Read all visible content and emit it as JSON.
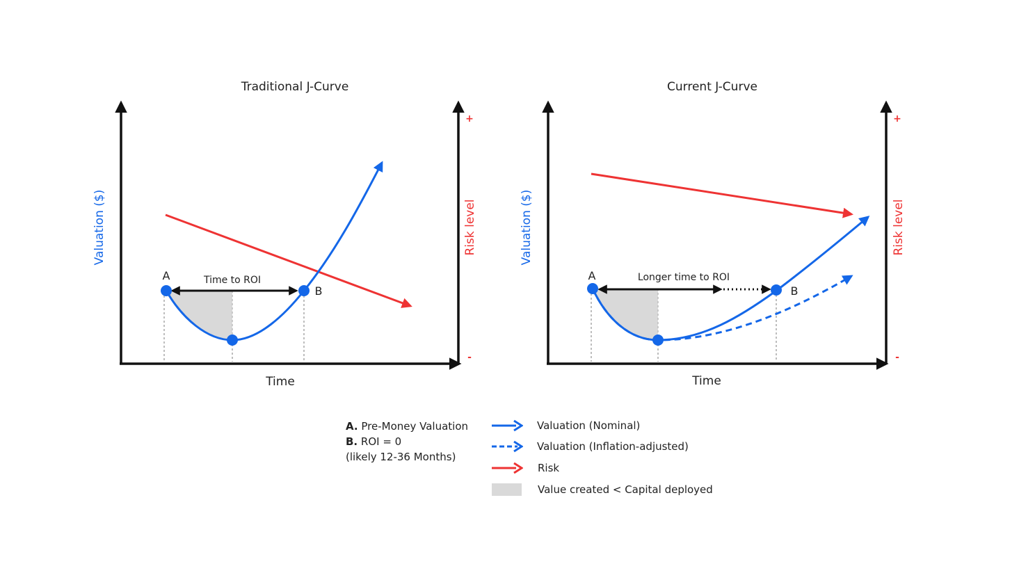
{
  "colors": {
    "valuation": "#1467e8",
    "risk": "#ee3333",
    "axis": "#111111",
    "shade": "#d9d9d9",
    "guide": "#bdbdbd"
  },
  "charts": [
    {
      "title": "Traditional J-Curve",
      "y_label": "Valuation ($)",
      "y2_label": "Risk level",
      "y2_plus": "+",
      "y2_minus": "-",
      "x_label": "Time",
      "point_a": "A",
      "point_b": "B",
      "span_label": "Time to ROI"
    },
    {
      "title": "Current J-Curve",
      "y_label": "Valuation ($)",
      "y2_label": "Risk level",
      "y2_plus": "+",
      "y2_minus": "-",
      "x_label": "Time",
      "point_a": "A",
      "point_b": "B",
      "span_label": "Longer time to ROI"
    }
  ],
  "legend": {
    "a_key": "A.",
    "a_text": "Pre-Money Valuation",
    "b_key": "B.",
    "b_text": "ROI = 0",
    "note": "(likely 12-36 Months)",
    "items": [
      {
        "label": "Valuation (Nominal)",
        "icon": "solid-blue-arrow"
      },
      {
        "label": "Valuation (Inflation-adjusted)",
        "icon": "dashed-blue-arrow"
      },
      {
        "label": "Risk",
        "icon": "red-arrow"
      },
      {
        "label": "Value created < Capital deployed",
        "icon": "gray-box"
      }
    ]
  }
}
